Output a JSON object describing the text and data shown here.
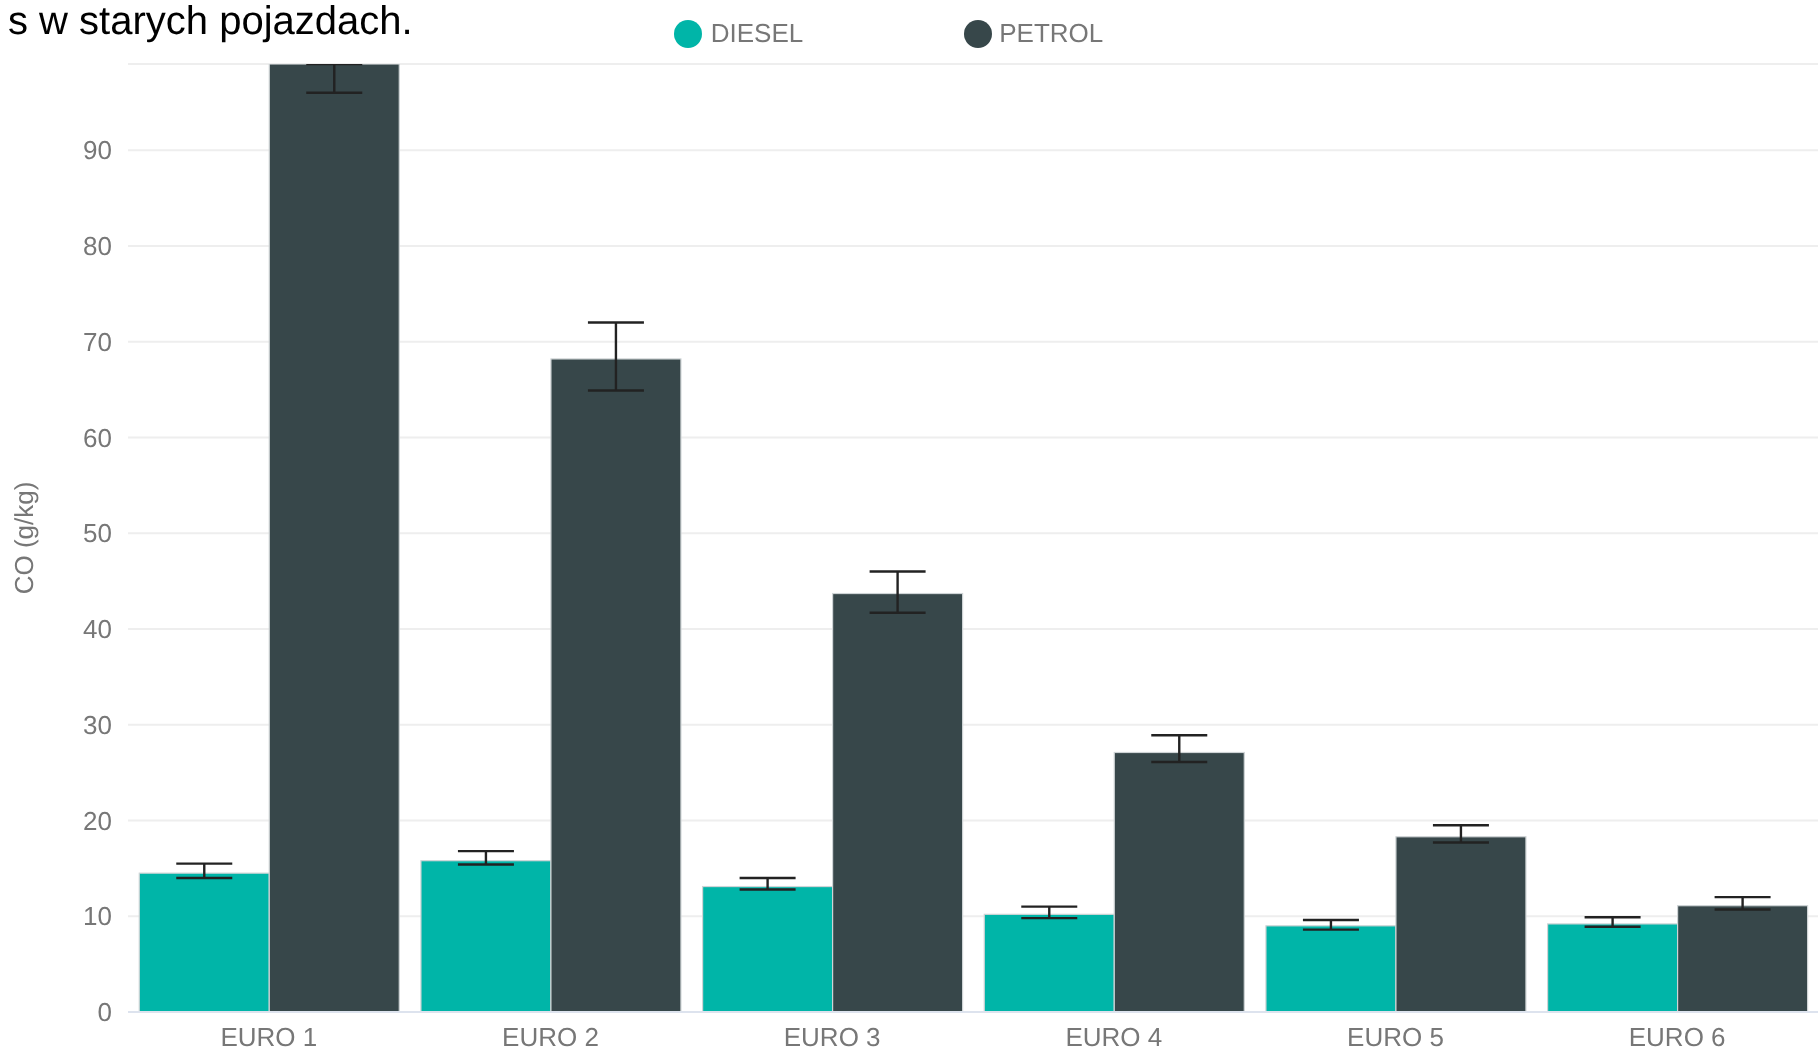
{
  "chart_data": {
    "type": "bar",
    "title": "s w starych pojazdach.",
    "ylabel": "CO (g/kg)",
    "categories": [
      "EURO 1",
      "EURO 2",
      "EURO 3",
      "EURO 4",
      "EURO 5",
      "EURO 6"
    ],
    "series": [
      {
        "name": "DIESEL",
        "color": "#00b5a8",
        "values": [
          14.5,
          15.8,
          13.1,
          10.2,
          9.0,
          9.2
        ],
        "errors": [
          [
            14.0,
            15.5
          ],
          [
            15.4,
            16.8
          ],
          [
            12.8,
            14.0
          ],
          [
            9.8,
            11.0
          ],
          [
            8.6,
            9.6
          ],
          [
            8.9,
            9.9
          ]
        ]
      },
      {
        "name": "PETROL",
        "color": "#37474a",
        "values": [
          99,
          68.2,
          43.7,
          27.1,
          18.3,
          11.1
        ],
        "errors": [
          [
            96.0,
            99
          ],
          [
            64.9,
            72.0
          ],
          [
            41.7,
            46.0
          ],
          [
            26.1,
            28.9
          ],
          [
            17.7,
            19.5
          ],
          [
            10.7,
            12.0
          ]
        ]
      }
    ],
    "ylim": [
      0,
      99
    ],
    "yticks": [
      0,
      10,
      20,
      30,
      40,
      50,
      60,
      70,
      80,
      90
    ],
    "grid": "y",
    "legend": "top"
  }
}
